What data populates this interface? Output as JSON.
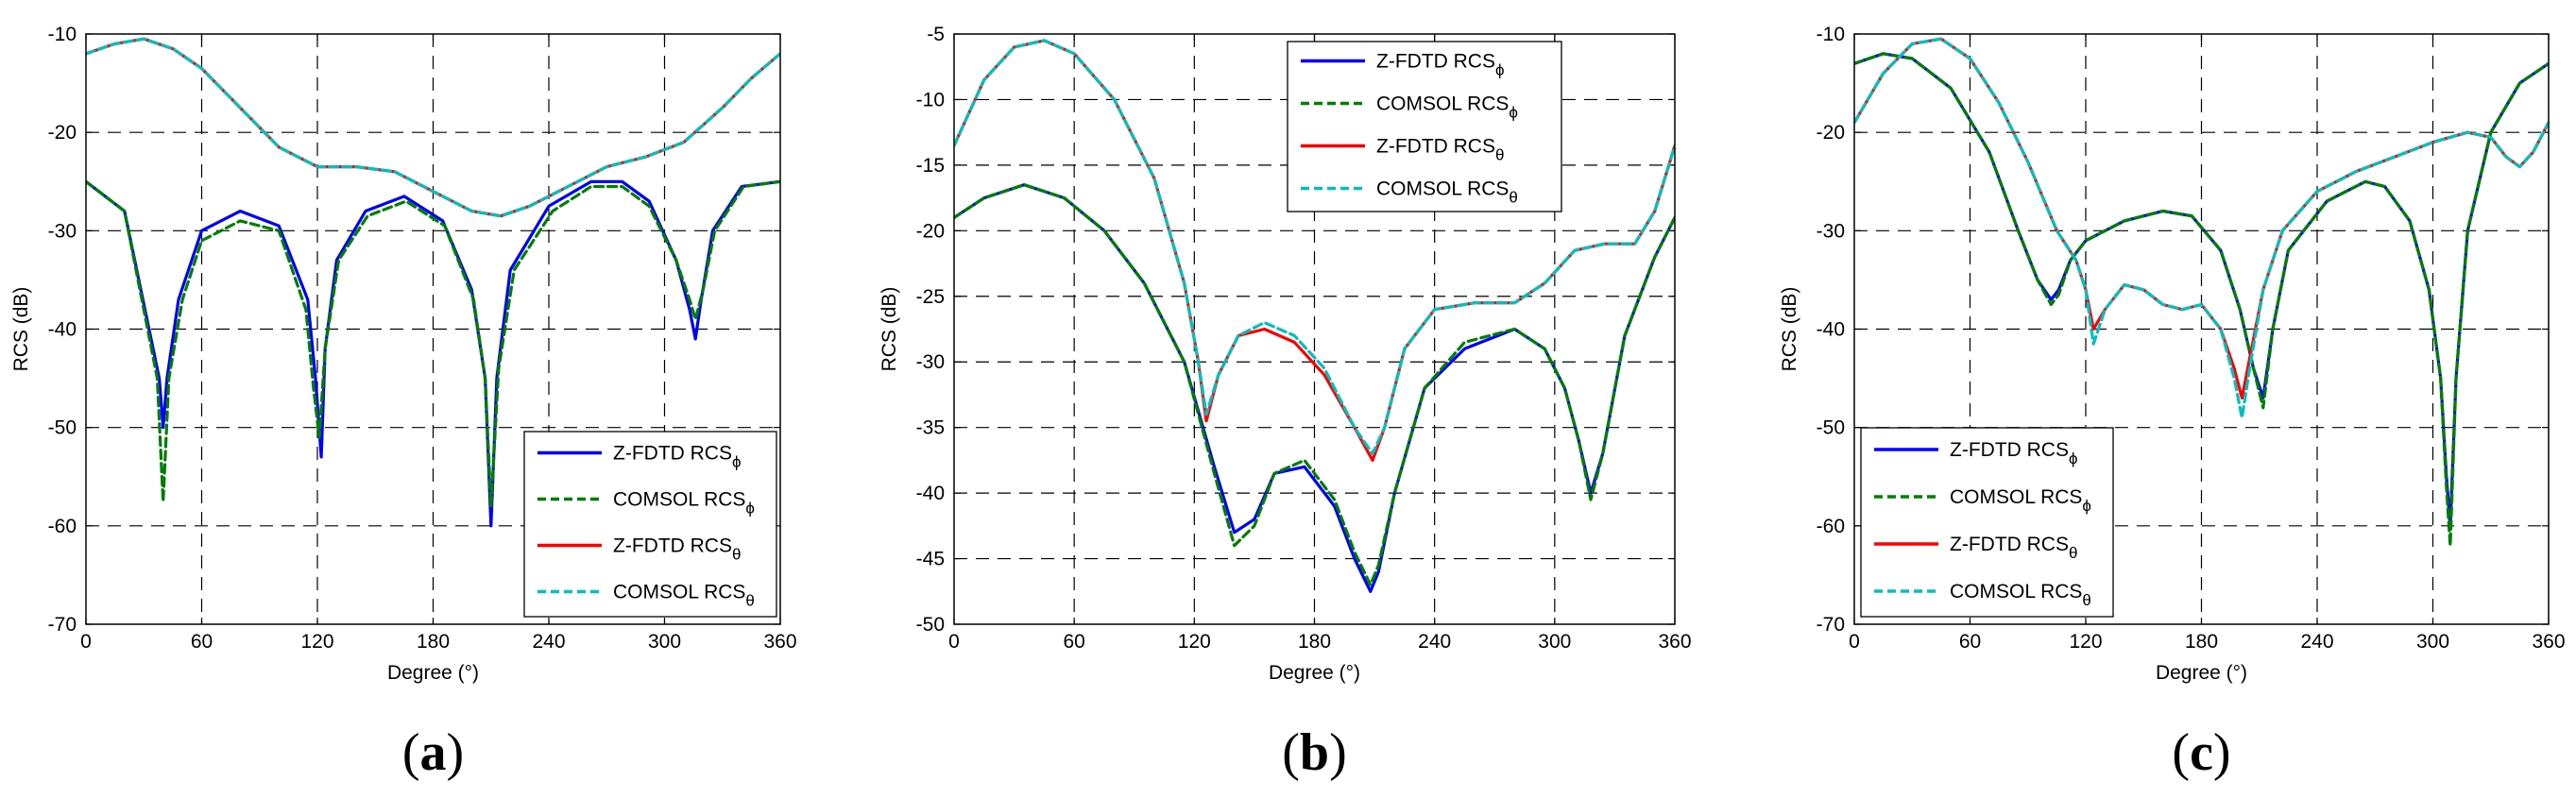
{
  "chart_data": [
    {
      "type": "line",
      "caption": "(a)",
      "caption_open": "(",
      "caption_letter": "a",
      "caption_close": ")",
      "xlabel": "Degree (°)",
      "ylabel": "RCS (dB)",
      "xlim": [
        0,
        360
      ],
      "ylim": [
        -70,
        -10
      ],
      "x_ticks": [
        "0",
        "60",
        "120",
        "180",
        "240",
        "300",
        "360"
      ],
      "y_ticks": [
        "-10",
        "-20",
        "-30",
        "-40",
        "-50",
        "-60",
        "-70"
      ],
      "grid": true,
      "legend_position": "bottom-right",
      "series": [
        {
          "name": "Z-FDTD RCS",
          "sub": "ϕ",
          "color": "#0000ff",
          "dash": "solid",
          "x": [
            0,
            20,
            38,
            40,
            42,
            48,
            60,
            80,
            100,
            115,
            119,
            122,
            124,
            130,
            145,
            165,
            185,
            200,
            207,
            210,
            213,
            220,
            240,
            262,
            278,
            292,
            306,
            313,
            316,
            319,
            325,
            340,
            360
          ],
          "y": [
            -25,
            -28,
            -45,
            -50,
            -45,
            -37,
            -30,
            -28,
            -29.5,
            -37,
            -45,
            -53,
            -42,
            -33,
            -28,
            -26.5,
            -29,
            -36,
            -45,
            -60,
            -45,
            -34,
            -27.5,
            -25,
            -25,
            -27,
            -33,
            -38,
            -41,
            -37,
            -30,
            -25.5,
            -25
          ]
        },
        {
          "name": "COMSOL RCS",
          "sub": "ϕ",
          "color": "#008000",
          "dash": "dashed",
          "x": [
            0,
            20,
            37,
            40,
            43,
            50,
            60,
            80,
            100,
            114,
            118,
            121,
            124,
            131,
            146,
            166,
            186,
            201,
            207,
            210,
            214,
            222,
            242,
            262,
            278,
            292,
            306,
            313,
            316,
            320,
            326,
            341,
            360
          ],
          "y": [
            -25,
            -28,
            -45,
            -57.5,
            -45,
            -37,
            -31,
            -29,
            -30,
            -38,
            -46,
            -51,
            -42,
            -33,
            -28.5,
            -27,
            -29.5,
            -37,
            -45,
            -58,
            -44,
            -34,
            -28,
            -25.5,
            -25.5,
            -27.5,
            -33,
            -37,
            -39,
            -36,
            -30,
            -25.5,
            -25
          ]
        },
        {
          "name": "Z-FDTD RCS",
          "sub": "θ",
          "color": "#ff0000",
          "dash": "solid",
          "x": [
            0,
            15,
            30,
            45,
            60,
            80,
            100,
            120,
            140,
            160,
            180,
            200,
            215,
            230,
            250,
            270,
            290,
            310,
            330,
            345,
            360
          ],
          "y": [
            -12,
            -11,
            -10.5,
            -11.5,
            -13.5,
            -17.5,
            -21.5,
            -23.5,
            -23.5,
            -24,
            -26,
            -28,
            -28.5,
            -27.5,
            -25.5,
            -23.5,
            -22.5,
            -21,
            -17.5,
            -14.5,
            -12
          ]
        },
        {
          "name": "COMSOL RCS",
          "sub": "θ",
          "color": "#00c0c0",
          "dash": "dashed",
          "x": [
            0,
            15,
            30,
            45,
            60,
            80,
            100,
            120,
            140,
            160,
            180,
            200,
            215,
            230,
            250,
            270,
            290,
            310,
            330,
            345,
            360
          ],
          "y": [
            -12,
            -11,
            -10.5,
            -11.5,
            -13.5,
            -17.5,
            -21.5,
            -23.5,
            -23.5,
            -24,
            -26,
            -28,
            -28.5,
            -27.5,
            -25.5,
            -23.5,
            -22.5,
            -21,
            -17.5,
            -14.5,
            -12
          ]
        }
      ]
    },
    {
      "type": "line",
      "caption": "(b)",
      "caption_open": "(",
      "caption_letter": "b",
      "caption_close": ")",
      "xlabel": "Degree (°)",
      "ylabel": "RCS (dB)",
      "xlim": [
        0,
        360
      ],
      "ylim": [
        -50,
        -5
      ],
      "x_ticks": [
        "0",
        "60",
        "120",
        "180",
        "240",
        "300",
        "360"
      ],
      "y_ticks": [
        "-5",
        "-10",
        "-15",
        "-20",
        "-25",
        "-30",
        "-35",
        "-40",
        "-45",
        "-50"
      ],
      "grid": true,
      "legend_position": "top-right",
      "series": [
        {
          "name": "Z-FDTD RCS",
          "sub": "ϕ",
          "color": "#0000ff",
          "dash": "solid",
          "x": [
            0,
            15,
            35,
            55,
            75,
            95,
            115,
            130,
            140,
            150,
            160,
            175,
            190,
            200,
            208,
            212,
            220,
            235,
            255,
            280,
            295,
            305,
            312,
            318,
            324,
            335,
            350,
            360
          ],
          "y": [
            -19,
            -17.5,
            -16.5,
            -17.5,
            -20,
            -24,
            -30,
            -38,
            -43,
            -42,
            -38.5,
            -38,
            -41,
            -45,
            -47.5,
            -46,
            -40,
            -32,
            -29,
            -27.5,
            -29,
            -32,
            -36,
            -40,
            -37,
            -28,
            -22,
            -19
          ]
        },
        {
          "name": "COMSOL RCS",
          "sub": "ϕ",
          "color": "#008000",
          "dash": "dashed",
          "x": [
            0,
            15,
            35,
            55,
            75,
            95,
            115,
            130,
            140,
            150,
            160,
            175,
            190,
            200,
            208,
            212,
            220,
            235,
            255,
            280,
            295,
            305,
            312,
            318,
            324,
            335,
            350,
            360
          ],
          "y": [
            -19,
            -17.5,
            -16.5,
            -17.5,
            -20,
            -24,
            -30,
            -38.5,
            -44,
            -42.5,
            -38.5,
            -37.5,
            -40.5,
            -44.5,
            -47,
            -45.5,
            -40,
            -32,
            -28.5,
            -27.5,
            -29,
            -32,
            -36,
            -40.5,
            -37,
            -28,
            -22,
            -19
          ]
        },
        {
          "name": "Z-FDTD RCS",
          "sub": "θ",
          "color": "#ff0000",
          "dash": "solid",
          "x": [
            0,
            15,
            30,
            45,
            60,
            80,
            100,
            115,
            122,
            126,
            132,
            142,
            155,
            170,
            185,
            200,
            209,
            215,
            225,
            240,
            260,
            280,
            295,
            310,
            325,
            340,
            350,
            360
          ],
          "y": [
            -13.5,
            -8.5,
            -6,
            -5.5,
            -6.5,
            -10,
            -16,
            -24,
            -30,
            -34.5,
            -31,
            -28,
            -27.5,
            -28.5,
            -31,
            -35,
            -37.5,
            -35,
            -29,
            -26,
            -25.5,
            -25.5,
            -24,
            -21.5,
            -21,
            -21,
            -18.5,
            -13.5
          ]
        },
        {
          "name": "COMSOL RCS",
          "sub": "θ",
          "color": "#00c0c0",
          "dash": "dashed",
          "x": [
            0,
            15,
            30,
            45,
            60,
            80,
            100,
            115,
            122,
            126,
            132,
            142,
            155,
            170,
            185,
            200,
            209,
            215,
            225,
            240,
            260,
            280,
            295,
            310,
            325,
            340,
            350,
            360
          ],
          "y": [
            -13.5,
            -8.5,
            -6,
            -5.5,
            -6.5,
            -10,
            -16,
            -24,
            -30,
            -34,
            -31,
            -28,
            -27,
            -28,
            -30.5,
            -35,
            -37,
            -35,
            -29,
            -26,
            -25.5,
            -25.5,
            -24,
            -21.5,
            -21,
            -21,
            -18.5,
            -13.5
          ]
        }
      ]
    },
    {
      "type": "line",
      "caption": "(c)",
      "caption_open": "(",
      "caption_letter": "c",
      "caption_close": ")",
      "xlabel": "Degree (°)",
      "ylabel": "RCS (dB)",
      "xlim": [
        0,
        360
      ],
      "ylim": [
        -70,
        -10
      ],
      "x_ticks": [
        "0",
        "60",
        "120",
        "180",
        "240",
        "300",
        "360"
      ],
      "y_ticks": [
        "-10",
        "-20",
        "-30",
        "-40",
        "-50",
        "-60",
        "-70"
      ],
      "grid": true,
      "legend_position": "bottom-left",
      "series": [
        {
          "name": "Z-FDTD RCS",
          "sub": "ϕ",
          "color": "#0000ff",
          "dash": "solid",
          "x": [
            0,
            15,
            30,
            50,
            70,
            85,
            95,
            102,
            106,
            112,
            120,
            140,
            160,
            175,
            190,
            200,
            207,
            212,
            217,
            225,
            245,
            265,
            275,
            288,
            298,
            304,
            307,
            309,
            312,
            318,
            330,
            345,
            360
          ],
          "y": [
            -13,
            -12,
            -12.5,
            -15.5,
            -22,
            -30,
            -35,
            -37,
            -36,
            -33,
            -31,
            -29,
            -28,
            -28.5,
            -32,
            -38,
            -44,
            -47,
            -40,
            -32,
            -27,
            -25,
            -25.5,
            -29,
            -36,
            -45,
            -55,
            -60,
            -45,
            -30,
            -20,
            -15,
            -13
          ]
        },
        {
          "name": "COMSOL RCS",
          "sub": "ϕ",
          "color": "#008000",
          "dash": "dashed",
          "x": [
            0,
            15,
            30,
            50,
            70,
            85,
            95,
            102,
            106,
            112,
            120,
            140,
            160,
            175,
            190,
            200,
            207,
            212,
            217,
            225,
            245,
            265,
            275,
            288,
            298,
            304,
            307,
            309,
            312,
            318,
            330,
            345,
            360
          ],
          "y": [
            -13,
            -12,
            -12.5,
            -15.5,
            -22,
            -30,
            -35,
            -37.5,
            -36.5,
            -33,
            -31,
            -29,
            -28,
            -28.5,
            -32,
            -38,
            -44,
            -48,
            -40,
            -32,
            -27,
            -25,
            -25.5,
            -29,
            -36,
            -45,
            -56,
            -62,
            -45,
            -30,
            -20,
            -15,
            -13
          ]
        },
        {
          "name": "Z-FDTD RCS",
          "sub": "θ",
          "color": "#ff0000",
          "dash": "solid",
          "x": [
            0,
            15,
            30,
            45,
            60,
            75,
            90,
            105,
            115,
            120,
            124,
            130,
            140,
            150,
            160,
            170,
            180,
            190,
            197,
            201,
            205,
            212,
            222,
            240,
            260,
            280,
            300,
            318,
            330,
            338,
            345,
            352,
            360
          ],
          "y": [
            -19,
            -14,
            -11,
            -10.5,
            -12.5,
            -17,
            -23,
            -30,
            -33,
            -36,
            -40,
            -38,
            -35.5,
            -36,
            -37.5,
            -38,
            -37.5,
            -40,
            -44,
            -47,
            -43,
            -36,
            -30,
            -26,
            -24,
            -22.5,
            -21,
            -20,
            -20.5,
            -22.5,
            -23.5,
            -22,
            -19
          ]
        },
        {
          "name": "COMSOL RCS",
          "sub": "θ",
          "color": "#00c0c0",
          "dash": "dashed",
          "x": [
            0,
            15,
            30,
            45,
            60,
            75,
            90,
            105,
            115,
            120,
            124,
            130,
            140,
            150,
            160,
            170,
            180,
            190,
            197,
            201,
            205,
            212,
            222,
            240,
            260,
            280,
            300,
            318,
            330,
            338,
            345,
            352,
            360
          ],
          "y": [
            -19,
            -14,
            -11,
            -10.5,
            -12.5,
            -17,
            -23,
            -30,
            -33,
            -36,
            -41.5,
            -38,
            -35.5,
            -36,
            -37.5,
            -38,
            -37.5,
            -40,
            -45,
            -49,
            -44,
            -36,
            -30,
            -26,
            -24,
            -22.5,
            -21,
            -20,
            -20.5,
            -22.5,
            -23.5,
            -22,
            -19
          ]
        }
      ]
    }
  ]
}
